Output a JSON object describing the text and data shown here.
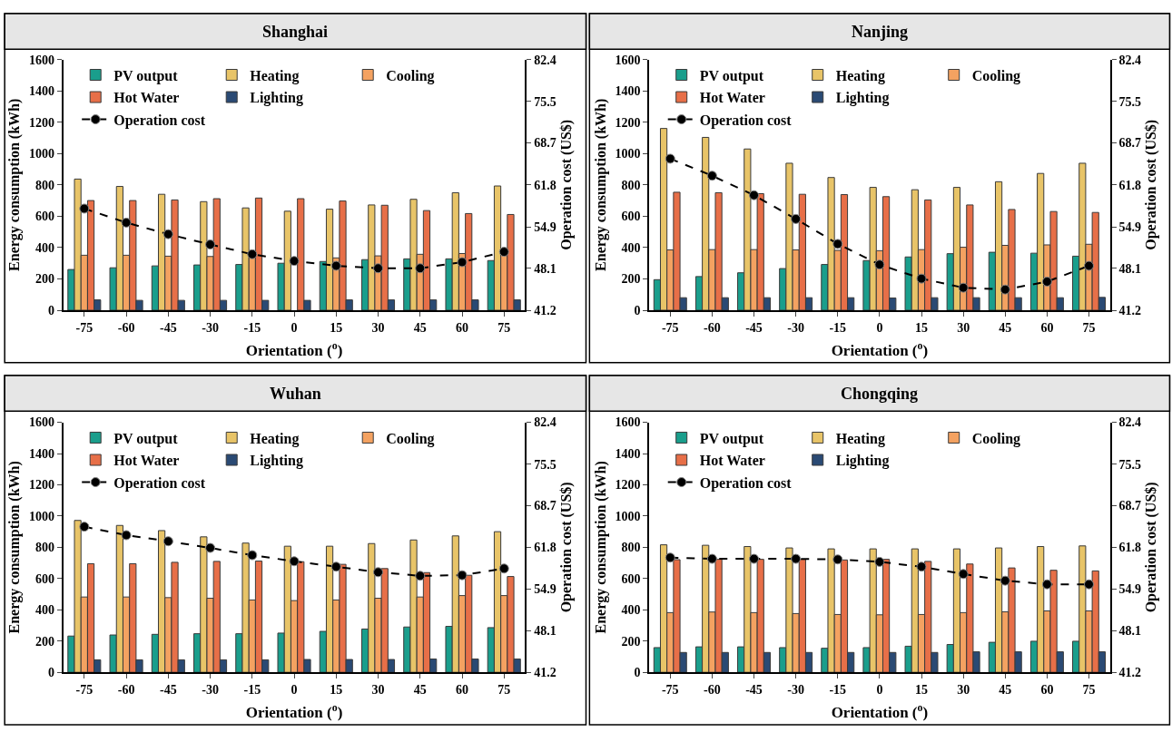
{
  "chart_data": [
    {
      "type": "bar",
      "title": "Shanghai",
      "xlabel": "Orientation ($^{o}$)",
      "ylabel": "Energy consumption (kWh)",
      "y2label": "Operation cost (US$)",
      "categories": [
        "-75",
        "-60",
        "-45",
        "-30",
        "-15",
        "0",
        "15",
        "30",
        "45",
        "60",
        "75"
      ],
      "ylim": [
        0,
        1600
      ],
      "yticks": [
        0,
        200,
        400,
        600,
        800,
        1000,
        1200,
        1400,
        1600
      ],
      "y2lim": [
        41.2,
        82.4
      ],
      "y2ticks": [
        41.2,
        48.1,
        54.9,
        61.8,
        68.7,
        75.5,
        82.4
      ],
      "legend": "top left",
      "series": [
        {
          "name": "PV output",
          "color": "#1a9e8c",
          "values": [
            260,
            271,
            283,
            289,
            292,
            300,
            311,
            323,
            328,
            328,
            317
          ]
        },
        {
          "name": "Heating",
          "color": "#e8c468",
          "values": [
            837,
            790,
            740,
            693,
            653,
            632,
            645,
            672,
            708,
            750,
            793
          ]
        },
        {
          "name": "Cooling",
          "color": "#f4a261",
          "values": [
            351,
            351,
            345,
            343,
            335,
            null,
            334,
            347,
            357,
            362,
            360
          ]
        },
        {
          "name": "Hot Water",
          "color": "#e76f48",
          "values": [
            700,
            700,
            704,
            712,
            716,
            712,
            697,
            670,
            636,
            617,
            611
          ]
        },
        {
          "name": "Lighting",
          "color": "#2a4a74",
          "values": [
            66,
            63,
            63,
            63,
            63,
            63,
            66,
            66,
            66,
            66,
            66
          ]
        },
        {
          "name": "Operation cost",
          "color": "#000000",
          "type": "line",
          "axis": "y2",
          "marker": "circle",
          "line_style": "dashed",
          "values": [
            57.9,
            55.6,
            53.7,
            52.0,
            50.4,
            49.3,
            48.5,
            48.1,
            48.1,
            49.1,
            50.8
          ]
        }
      ]
    },
    {
      "type": "bar",
      "title": "Nanjing",
      "xlabel": "Orientation ($^{o}$)",
      "ylabel": "Energy consumption (kWh)",
      "y2label": "Operation cost (US$)",
      "categories": [
        "-75",
        "-60",
        "-45",
        "-30",
        "-15",
        "0",
        "15",
        "30",
        "45",
        "60",
        "75"
      ],
      "ylim": [
        0,
        1600
      ],
      "yticks": [
        0,
        200,
        400,
        600,
        800,
        1000,
        1200,
        1400,
        1600
      ],
      "y2lim": [
        41.2,
        82.4
      ],
      "y2ticks": [
        41.2,
        48.1,
        54.9,
        61.8,
        68.7,
        75.5,
        82.4
      ],
      "legend": "top left",
      "series": [
        {
          "name": "PV output",
          "color": "#1a9e8c",
          "values": [
            195,
            215,
            239,
            266,
            292,
            317,
            340,
            361,
            370,
            364,
            345
          ]
        },
        {
          "name": "Heating",
          "color": "#e8c468",
          "values": [
            1160,
            1103,
            1029,
            938,
            847,
            784,
            769,
            784,
            820,
            873,
            938
          ]
        },
        {
          "name": "Cooling",
          "color": "#f4a261",
          "values": [
            385,
            387,
            387,
            385,
            382,
            380,
            387,
            402,
            414,
            417,
            421
          ]
        },
        {
          "name": "Hot Water",
          "color": "#e76f48",
          "values": [
            753,
            750,
            744,
            740,
            738,
            725,
            704,
            672,
            643,
            630,
            624
          ]
        },
        {
          "name": "Lighting",
          "color": "#2a4a74",
          "values": [
            80,
            80,
            80,
            80,
            80,
            78,
            80,
            80,
            80,
            80,
            82
          ]
        },
        {
          "name": "Operation cost",
          "color": "#000000",
          "type": "line",
          "axis": "y2",
          "marker": "circle",
          "line_style": "dashed",
          "values": [
            66.1,
            63.3,
            60.1,
            56.2,
            52.1,
            48.7,
            46.4,
            44.9,
            44.6,
            45.9,
            48.5
          ]
        }
      ]
    },
    {
      "type": "bar",
      "title": "Wuhan",
      "xlabel": "Orientation ($^{o}$)",
      "ylabel": "Energy consumption (kWh)",
      "y2label": "Operation cost (US$)",
      "categories": [
        "-75",
        "-60",
        "-45",
        "-30",
        "-15",
        "0",
        "15",
        "30",
        "45",
        "60",
        "75"
      ],
      "ylim": [
        0,
        1600
      ],
      "yticks": [
        0,
        200,
        400,
        600,
        800,
        1000,
        1200,
        1400,
        1600
      ],
      "y2lim": [
        41.2,
        82.4
      ],
      "y2ticks": [
        41.2,
        48.1,
        54.9,
        61.8,
        68.7,
        75.5,
        82.4
      ],
      "legend": "top left",
      "series": [
        {
          "name": "PV output",
          "color": "#1a9e8c",
          "values": [
            232,
            239,
            243,
            247,
            247,
            251,
            262,
            277,
            290,
            294,
            286
          ]
        },
        {
          "name": "Heating",
          "color": "#e8c468",
          "values": [
            972,
            940,
            907,
            867,
            827,
            807,
            807,
            824,
            847,
            873,
            900
          ]
        },
        {
          "name": "Cooling",
          "color": "#f4a261",
          "values": [
            482,
            482,
            478,
            474,
            463,
            459,
            463,
            474,
            482,
            491,
            491
          ]
        },
        {
          "name": "Hot Water",
          "color": "#e76f48",
          "values": [
            695,
            695,
            704,
            710,
            712,
            708,
            691,
            664,
            638,
            621,
            613
          ]
        },
        {
          "name": "Lighting",
          "color": "#2a4a74",
          "values": [
            80,
            80,
            80,
            80,
            80,
            82,
            82,
            82,
            85,
            85,
            85
          ]
        },
        {
          "name": "Operation cost",
          "color": "#000000",
          "type": "line",
          "axis": "y2",
          "marker": "circle",
          "line_style": "dashed",
          "values": [
            65.2,
            63.8,
            62.8,
            61.7,
            60.5,
            59.5,
            58.6,
            57.7,
            57.1,
            57.2,
            58.3
          ]
        }
      ]
    },
    {
      "type": "bar",
      "title": "Chongqing",
      "xlabel": "Orientation ($^{o}$)",
      "ylabel": "Energy consumption (kWh)",
      "y2label": "Operation cost (US$)",
      "categories": [
        "-75",
        "-60",
        "-45",
        "-30",
        "-15",
        "0",
        "15",
        "30",
        "45",
        "60",
        "75"
      ],
      "ylim": [
        0,
        1600
      ],
      "yticks": [
        0,
        200,
        400,
        600,
        800,
        1000,
        1200,
        1400,
        1600
      ],
      "y2lim": [
        41.2,
        82.4
      ],
      "y2ticks": [
        41.2,
        48.1,
        54.9,
        61.8,
        68.7,
        75.5,
        82.4
      ],
      "legend": "top left",
      "series": [
        {
          "name": "PV output",
          "color": "#1a9e8c",
          "values": [
            158,
            163,
            163,
            158,
            154,
            158,
            167,
            178,
            192,
            199,
            199
          ]
        },
        {
          "name": "Heating",
          "color": "#e8c468",
          "values": [
            816,
            813,
            805,
            796,
            790,
            790,
            790,
            790,
            796,
            805,
            809
          ]
        },
        {
          "name": "Cooling",
          "color": "#f4a261",
          "values": [
            382,
            386,
            382,
            376,
            370,
            368,
            370,
            382,
            387,
            393,
            393
          ]
        },
        {
          "name": "Hot Water",
          "color": "#e76f48",
          "values": [
            721,
            723,
            723,
            723,
            719,
            723,
            710,
            693,
            668,
            653,
            649
          ]
        },
        {
          "name": "Lighting",
          "color": "#2a4a74",
          "values": [
            127,
            127,
            127,
            127,
            127,
            127,
            127,
            131,
            131,
            131,
            131
          ]
        },
        {
          "name": "Operation cost",
          "color": "#000000",
          "type": "line",
          "axis": "y2",
          "marker": "circle",
          "line_style": "dashed",
          "values": [
            60.1,
            59.9,
            59.9,
            59.9,
            59.8,
            59.4,
            58.6,
            57.4,
            56.3,
            55.7,
            55.7
          ]
        }
      ]
    }
  ]
}
